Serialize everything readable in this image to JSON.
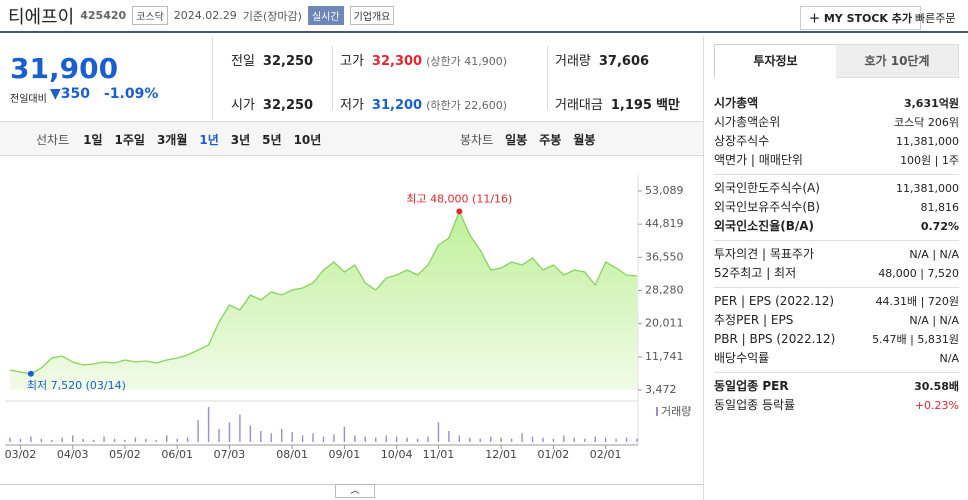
{
  "header": {
    "name": "티에프이",
    "code": "425420",
    "market": "코스닥",
    "date": "2024.02.29",
    "date_note": "기준(장마감)",
    "realtime": "실시간",
    "company_info": "기업개요",
    "my_stock": "MY STOCK 추가",
    "quick_order": "빠른주문"
  },
  "price": {
    "current": "31,900",
    "change_label": "전일대비",
    "change": "350",
    "change_pct": "-1.09%"
  },
  "stats": [
    [
      {
        "label": "전일",
        "value": "32,250"
      },
      {
        "label": "고가",
        "value": "32,300",
        "note": "(상한가 41,900)",
        "color": "#e0282e"
      },
      {
        "label": "거래량",
        "value": "37,606"
      }
    ],
    [
      {
        "label": "시가",
        "value": "32,250"
      },
      {
        "label": "저가",
        "value": "31,200",
        "note": "(하한가 22,600)",
        "color": "#1a5fd0"
      },
      {
        "label": "거래대금",
        "value": "1,195",
        "note": "백만"
      }
    ]
  ],
  "tabs": {
    "line_chart": "선차트",
    "periods": [
      "1일",
      "1주일",
      "3개월",
      "1년",
      "3년",
      "5년",
      "10년"
    ],
    "candle_chart": "봉차트",
    "candle_periods": [
      "일봉",
      "주봉",
      "월봉"
    ]
  },
  "chart_data": {
    "type": "line",
    "categories": [
      null,
      "03/02",
      null,
      null,
      null,
      null,
      "04/03",
      null,
      null,
      null,
      null,
      "05/02",
      null,
      null,
      null,
      null,
      "06/01",
      null,
      null,
      null,
      null,
      "07/03",
      null,
      null,
      null,
      null,
      null,
      "08/01",
      null,
      null,
      null,
      null,
      "09/01",
      null,
      null,
      null,
      null,
      "10/04",
      null,
      null,
      null,
      "11/01",
      null,
      null,
      null,
      null,
      null,
      "12/01",
      null,
      null,
      null,
      null,
      "01/02",
      null,
      null,
      null,
      null,
      "02/01",
      null,
      null,
      null
    ],
    "series": [
      {
        "name": "종가",
        "color": "#86d35c",
        "values": [
          8460,
          7960,
          7520,
          8960,
          11450,
          11950,
          10450,
          9710,
          9950,
          10450,
          10200,
          10950,
          10450,
          10700,
          10200,
          10950,
          11450,
          12200,
          13440,
          14690,
          20420,
          24660,
          23420,
          27160,
          25910,
          27900,
          27160,
          28400,
          28900,
          30150,
          33390,
          35380,
          32890,
          34630,
          30150,
          28400,
          31390,
          32140,
          33390,
          32140,
          34630,
          39620,
          41370,
          48000,
          42110,
          38370,
          33390,
          33890,
          35380,
          34630,
          36380,
          33390,
          34630,
          32140,
          33390,
          32890,
          29650,
          35380,
          33890,
          32140,
          31900
        ]
      }
    ],
    "volume": {
      "name": "거래량",
      "color": "#9d8cc8",
      "values": [
        4,
        3,
        5,
        3,
        2,
        4,
        6,
        3,
        2,
        5,
        3,
        2,
        4,
        3,
        2,
        6,
        3,
        4,
        20,
        32,
        12,
        18,
        25,
        15,
        10,
        8,
        12,
        9,
        6,
        8,
        5,
        7,
        14,
        6,
        5,
        4,
        6,
        5,
        4,
        3,
        5,
        18,
        10,
        6,
        4,
        3,
        5,
        4,
        3,
        8,
        5,
        4,
        3,
        6,
        4,
        3,
        5,
        4,
        3,
        4,
        3
      ]
    },
    "ylim": [
      3472,
      53089
    ],
    "yticks": [
      {
        "value": 3472,
        "label": "3,472"
      },
      {
        "value": 11741,
        "label": "11,741"
      },
      {
        "value": 20011,
        "label": "20,011"
      },
      {
        "value": 28280,
        "label": "28,280"
      },
      {
        "value": 36550,
        "label": "36,550"
      },
      {
        "value": 44819,
        "label": "44,819"
      },
      {
        "value": 53089,
        "label": "53,089"
      }
    ],
    "max_label": "최고 48,000 (11/16)",
    "min_label": "최저 7,520 (03/14)",
    "grid": false
  },
  "info_panel": {
    "tabs": [
      "투자정보",
      "호가 10단계"
    ],
    "sections": [
      [
        {
          "label": "시가총액",
          "value": "3,631억원",
          "bold": true
        },
        {
          "label": "시가총액순위",
          "value": "코스닥 206위"
        },
        {
          "label": "상장주식수",
          "value": "11,381,000"
        },
        {
          "label": "액면가 | 매매단위",
          "value": "100원 | 1주"
        }
      ],
      [
        {
          "label": "외국인한도주식수(A)",
          "value": "11,381,000"
        },
        {
          "label": "외국인보유주식수(B)",
          "value": "81,816"
        },
        {
          "label": "외국인소진율(B/A)",
          "value": "0.72%",
          "bold": true
        }
      ],
      [
        {
          "label": "투자의견 | 목표주가",
          "value": "N/A | N/A"
        },
        {
          "label": "52주최고 | 최저",
          "value": "48,000 | 7,520"
        }
      ],
      [
        {
          "label": "PER | EPS (2022.12)",
          "value": "44.31배 | 720원"
        },
        {
          "label": "추정PER | EPS",
          "value": "N/A | N/A"
        },
        {
          "label": "PBR | BPS (2022.12)",
          "value": "5.47배 | 5,831원"
        },
        {
          "label": "배당수익률",
          "value": "N/A"
        }
      ],
      [
        {
          "label": "동일업종 PER",
          "value": "30.58배",
          "bold": true
        },
        {
          "label": "동일업종 등락률",
          "value": "+0.23%",
          "color": "#e0282e"
        }
      ]
    ]
  }
}
